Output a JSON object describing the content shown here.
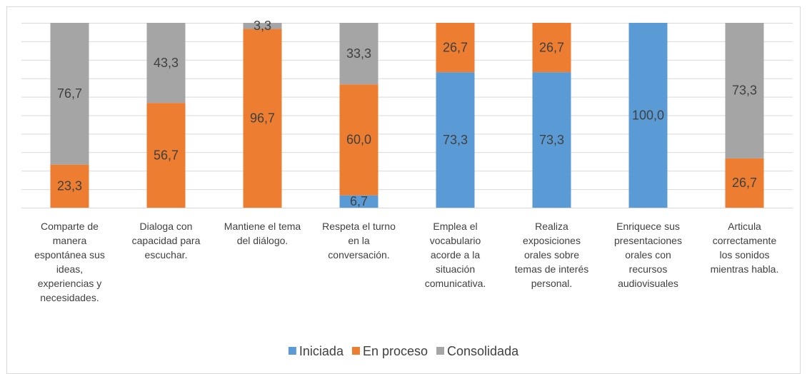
{
  "chart_data": {
    "type": "stacked_bar",
    "categories": [
      "Comparte  de\nmanera\nespontánea sus\nideas,\nexperiencias y\nnecesidades.",
      "Dialoga con\ncapacidad para\nescuchar.",
      "Mantiene el tema\ndel diálogo.",
      "Respeta el turno\nen la\nconversación.",
      "Emplea el\nvocabulario\nacorde a la\nsituación\ncomunicativa.",
      "Realiza\nexposiciones\norales sobre\ntemas de interés\npersonal.",
      "Enriquece sus\npresentaciones\norales con\nrecursos\naudiovisuales",
      "Articula\ncorrectamente\nlos sonidos\nmientras habla."
    ],
    "series": [
      {
        "name": "Iniciada",
        "color": "#5b9bd5",
        "values": [
          0,
          0,
          0,
          6.7,
          73.3,
          73.3,
          100,
          0
        ],
        "value_labels": [
          null,
          null,
          null,
          "6,7",
          "73,3",
          "73,3",
          "100,0",
          null
        ]
      },
      {
        "name": "En proceso",
        "color": "#ed7d31",
        "values": [
          23.3,
          56.7,
          96.7,
          60,
          26.7,
          26.7,
          0,
          26.7
        ],
        "value_labels": [
          "23,3",
          "56,7",
          "96,7",
          "60,0",
          "26,7",
          "26,7",
          null,
          "26,7"
        ]
      },
      {
        "name": "Consolidada",
        "color": "#a5a5a5",
        "values": [
          76.7,
          43.3,
          3.3,
          33.3,
          0,
          0,
          0,
          73.3
        ],
        "value_labels": [
          "76,7",
          "43,3",
          "3,3",
          "33,3",
          null,
          null,
          null,
          "73,3"
        ]
      }
    ],
    "ylim": [
      0,
      100
    ],
    "yticks": [
      0,
      10,
      20,
      30,
      40,
      50,
      60,
      70,
      80,
      90,
      100
    ],
    "grid": true,
    "legend": "bottom"
  }
}
